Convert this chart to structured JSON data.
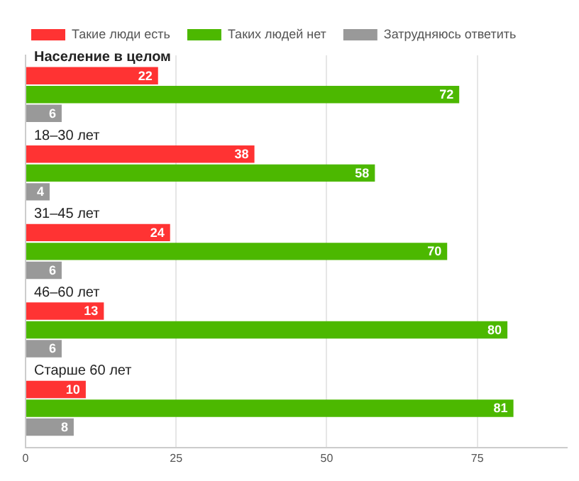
{
  "chart_data": {
    "type": "bar",
    "orientation": "horizontal",
    "categories": [
      "Население в целом",
      "18–30 лет",
      "31–45 лет",
      "46–60 лет",
      "Старше 60 лет"
    ],
    "series": [
      {
        "name": "Такие люди есть",
        "color": "#ff3333",
        "values": [
          22,
          38,
          24,
          13,
          10
        ]
      },
      {
        "name": "Таких людей нет",
        "color": "#4cb800",
        "values": [
          72,
          58,
          70,
          80,
          81
        ]
      },
      {
        "name": "Затрудняюсь ответить",
        "color": "#999999",
        "values": [
          6,
          4,
          6,
          6,
          8
        ]
      }
    ],
    "xlim": [
      0,
      90
    ],
    "xticks": [
      0,
      25,
      50,
      75
    ],
    "grid": "x",
    "legend": "top left",
    "data_labels": true
  }
}
